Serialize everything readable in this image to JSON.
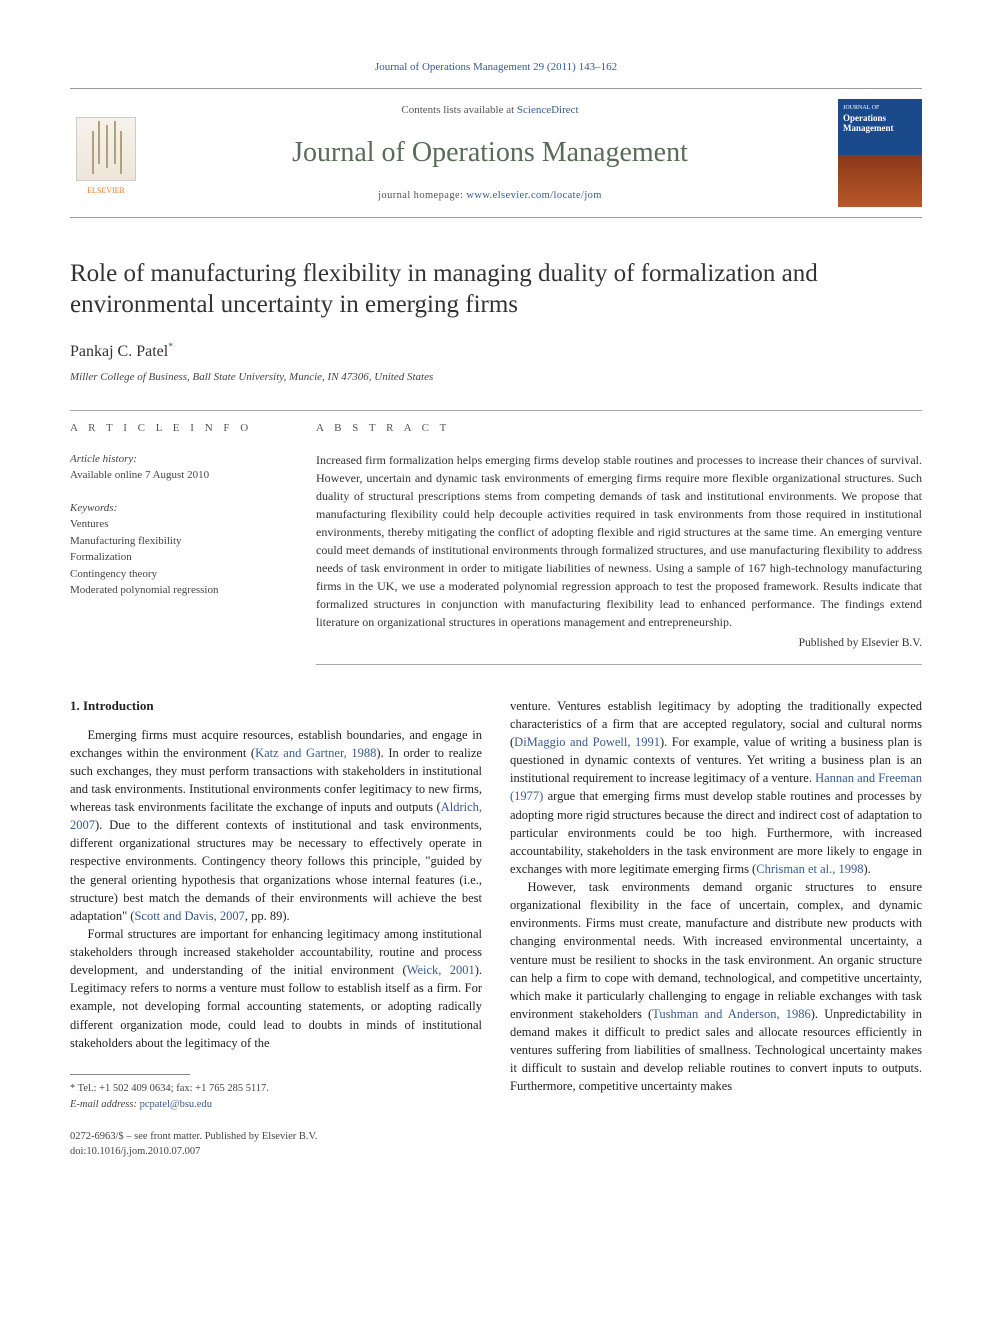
{
  "journal_ref": "Journal of Operations Management 29 (2011) 143–162",
  "masthead": {
    "contents_prefix": "Contents lists available at ",
    "contents_link": "ScienceDirect",
    "journal_title": "Journal of Operations Management",
    "homepage_prefix": "journal homepage: ",
    "homepage_url": "www.elsevier.com/locate/jom",
    "publisher_logo_text": "ELSEVIER",
    "cover_top": "JOURNAL OF",
    "cover_title": "Operations Management"
  },
  "article": {
    "title": "Role of manufacturing flexibility in managing duality of formalization and environmental uncertainty in emerging firms",
    "author": "Pankaj C. Patel",
    "author_marker": "*",
    "affiliation": "Miller College of Business, Ball State University, Muncie, IN 47306, United States"
  },
  "info": {
    "heading": "A R T I C L E   I N F O",
    "history_label": "Article history:",
    "history_line": "Available online 7 August 2010",
    "keywords_label": "Keywords:",
    "keywords": [
      "Ventures",
      "Manufacturing flexibility",
      "Formalization",
      "Contingency theory",
      "Moderated polynomial regression"
    ]
  },
  "abstract": {
    "heading": "A B S T R A C T",
    "text": "Increased firm formalization helps emerging firms develop stable routines and processes to increase their chances of survival. However, uncertain and dynamic task environments of emerging firms require more flexible organizational structures. Such duality of structural prescriptions stems from competing demands of task and institutional environments. We propose that manufacturing flexibility could help decouple activities required in task environments from those required in institutional environments, thereby mitigating the conflict of adopting flexible and rigid structures at the same time. An emerging venture could meet demands of institutional environments through formalized structures, and use manufacturing flexibility to address needs of task environment in order to mitigate liabilities of newness. Using a sample of 167 high-technology manufacturing firms in the UK, we use a moderated polynomial regression approach to test the proposed framework. Results indicate that formalized structures in conjunction with manufacturing flexibility lead to enhanced performance. The findings extend literature on organizational structures in operations management and entrepreneurship.",
    "publisher_line": "Published by Elsevier B.V."
  },
  "body": {
    "section_number": "1.",
    "section_title": "Introduction",
    "p1a": "Emerging firms must acquire resources, establish boundaries, and engage in exchanges within the environment (",
    "p1_cite1": "Katz and Gartner, 1988",
    "p1b": "). In order to realize such exchanges, they must perform transactions with stakeholders in institutional and task environments. Institutional environments confer legitimacy to new firms, whereas task environments facilitate the exchange of inputs and outputs (",
    "p1_cite2": "Aldrich, 2007",
    "p1c": "). Due to the different contexts of institutional and task environments, different organizational structures may be necessary to effectively operate in respective environments. Contingency theory follows this principle, \"guided by the general orienting hypothesis that organizations whose internal features (i.e., structure) best match the demands of their environments will achieve the best adaptation\" (",
    "p1_cite3": "Scott and Davis, 2007",
    "p1d": ", pp. 89).",
    "p2a": "Formal structures are important for enhancing legitimacy among institutional stakeholders through increased stakeholder accountability, routine and process development, and understanding of the initial environment (",
    "p2_cite1": "Weick, 2001",
    "p2b": "). Legitimacy refers to norms a venture must follow to establish itself as a firm. For example, not developing formal accounting statements, or adopting radically different organization mode, could lead to doubts in minds of institutional stakeholders about the legitimacy of the",
    "p3a": "venture. Ventures establish legitimacy by adopting the traditionally expected characteristics of a firm that are accepted regulatory, social and cultural norms (",
    "p3_cite1": "DiMaggio and Powell, 1991",
    "p3b": "). For example, value of writing a business plan is questioned in dynamic contexts of ventures. Yet writing a business plan is an institutional requirement to increase legitimacy of a venture. ",
    "p3_cite2": "Hannan and Freeman (1977)",
    "p3c": " argue that emerging firms must develop stable routines and processes by adopting more rigid structures because the direct and indirect cost of adaptation to particular environments could be too high. Furthermore, with increased accountability, stakeholders in the task environment are more likely to engage in exchanges with more legitimate emerging firms (",
    "p3_cite3": "Chrisman et al., 1998",
    "p3d": ").",
    "p4a": "However, task environments demand organic structures to ensure organizational flexibility in the face of uncertain, complex, and dynamic environments. Firms must create, manufacture and distribute new products with changing environmental needs. With increased environmental uncertainty, a venture must be resilient to shocks in the task environment. An organic structure can help a firm to cope with demand, technological, and competitive uncertainty, which make it particularly challenging to engage in reliable exchanges with task environment stakeholders (",
    "p4_cite1": "Tushman and Anderson, 1986",
    "p4b": "). Unpredictability in demand makes it difficult to predict sales and allocate resources efficiently in ventures suffering from liabilities of smallness. Technological uncertainty makes it difficult to sustain and develop reliable routines to convert inputs to outputs. Furthermore, competitive uncertainty makes"
  },
  "footnotes": {
    "corr": "* Tel.: +1 502 409 0634; fax: +1 765 285 5117.",
    "email_label": "E-mail address:",
    "email": "pcpatel@bsu.edu"
  },
  "bottom": {
    "issn_line": "0272-6963/$ – see front matter. Published by Elsevier B.V.",
    "doi_line": "doi:10.1016/j.jom.2010.07.007"
  },
  "colors": {
    "link": "#3a5b8c",
    "accent_orange": "#e77b2f",
    "cover_top": "#1a4a8c",
    "cover_bottom": "#b8582a",
    "text": "#333333",
    "rule": "#aaaaaa"
  }
}
